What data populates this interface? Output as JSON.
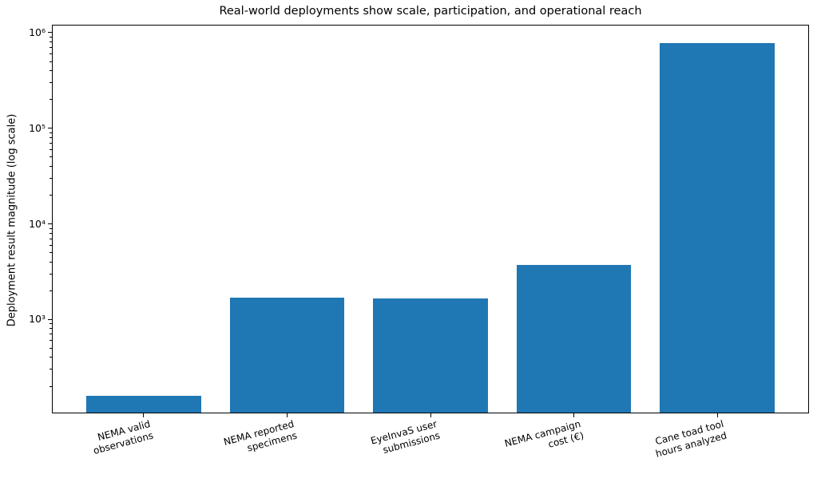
{
  "chart_data": {
    "type": "bar",
    "title": "Real-world deployments show scale, participation, and operational reach",
    "ylabel": "Deployment result magnitude (log scale)",
    "xlabel": "",
    "categories": [
      "NEMA valid\nobservations",
      "NEMA reported\nspecimens",
      "EyeInvaS user\nsubmissions",
      "NEMA campaign\ncost (€)",
      "Cane toad tool\nhours analyzed"
    ],
    "values": [
      160,
      1700,
      1650,
      3700,
      780000
    ],
    "yscale": "log",
    "ylim": [
      104,
      1210000
    ],
    "xlim": [
      -0.64,
      4.64
    ],
    "yticks": [
      {
        "value": 1000,
        "label": "10³"
      },
      {
        "value": 10000,
        "label": "10⁴"
      },
      {
        "value": 100000,
        "label": "10⁵"
      },
      {
        "value": 1000000,
        "label": "10⁶"
      }
    ],
    "bar_color": "#1f77b4",
    "bar_width": 0.8,
    "tick_label_rotation_deg": 15,
    "grid": false,
    "legend": null,
    "background_color": "#ffffff",
    "spine_color": "#000000"
  }
}
